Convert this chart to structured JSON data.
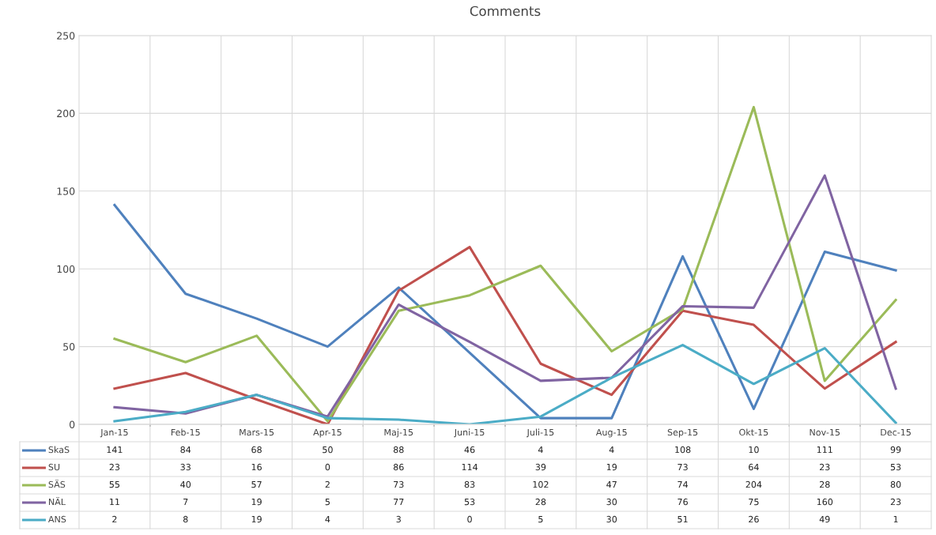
{
  "chart_data": {
    "type": "line",
    "title": "Comments",
    "categories": [
      "Jan-15",
      "Feb-15",
      "Mars-15",
      "Apr-15",
      "Maj-15",
      "Juni-15",
      "Juli-15",
      "Aug-15",
      "Sep-15",
      "Okt-15",
      "Nov-15",
      "Dec-15"
    ],
    "series": [
      {
        "name": "SkaS",
        "color": "#4f81bd",
        "values": [
          141,
          84,
          68,
          50,
          88,
          46,
          4,
          4,
          108,
          10,
          111,
          99
        ]
      },
      {
        "name": "SU",
        "color": "#c0504d",
        "values": [
          23,
          33,
          16,
          0,
          86,
          114,
          39,
          19,
          73,
          64,
          23,
          53
        ]
      },
      {
        "name": "SÄS",
        "color": "#9bbb59",
        "values": [
          55,
          40,
          57,
          2,
          73,
          83,
          102,
          47,
          74,
          204,
          28,
          80
        ]
      },
      {
        "name": "NÄL",
        "color": "#8064a2",
        "values": [
          11,
          7,
          19,
          5,
          77,
          53,
          28,
          30,
          76,
          75,
          160,
          23
        ]
      },
      {
        "name": "ANS",
        "color": "#4bacc6",
        "values": [
          2,
          8,
          19,
          4,
          3,
          0,
          5,
          30,
          51,
          26,
          49,
          1
        ]
      }
    ],
    "ylim": [
      0,
      250
    ],
    "yticks": [
      0,
      50,
      100,
      150,
      200,
      250
    ],
    "grid": true,
    "legend": "bottom",
    "data_labels": true,
    "line_style": "solid",
    "marker": "none"
  }
}
